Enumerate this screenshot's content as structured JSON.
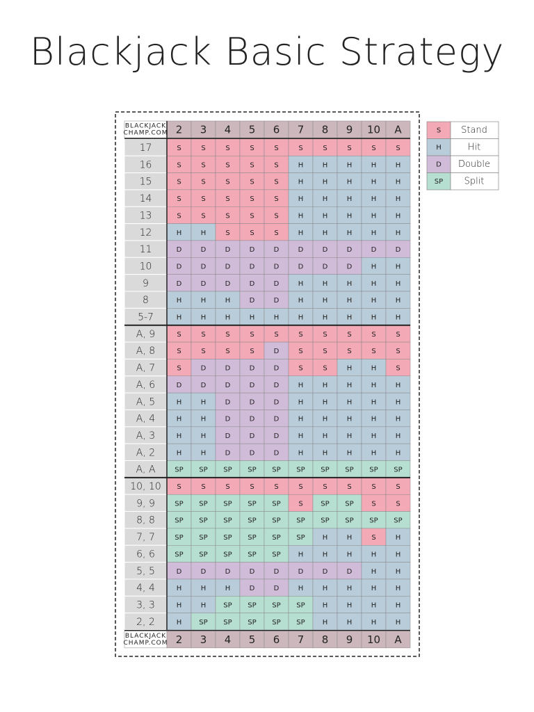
{
  "title": "Blackjack Basic Strategy",
  "brand": [
    "BLACKJACK",
    "CHAMP.COM"
  ],
  "columns": [
    "2",
    "3",
    "4",
    "5",
    "6",
    "7",
    "8",
    "9",
    "10",
    "A"
  ],
  "legend": [
    {
      "code": "S",
      "label": "Stand",
      "color": "#f4a9b7"
    },
    {
      "code": "H",
      "label": "Hit",
      "color": "#b9ccda"
    },
    {
      "code": "D",
      "label": "Double",
      "color": "#d0bcd9"
    },
    {
      "code": "SP",
      "label": "Split",
      "color": "#b6ded1"
    }
  ],
  "rows": [
    {
      "label": "17",
      "cells": [
        "S",
        "S",
        "S",
        "S",
        "S",
        "S",
        "S",
        "S",
        "S",
        "S"
      ]
    },
    {
      "label": "16",
      "cells": [
        "S",
        "S",
        "S",
        "S",
        "S",
        "H",
        "H",
        "H",
        "H",
        "H"
      ]
    },
    {
      "label": "15",
      "cells": [
        "S",
        "S",
        "S",
        "S",
        "S",
        "H",
        "H",
        "H",
        "H",
        "H"
      ]
    },
    {
      "label": "14",
      "cells": [
        "S",
        "S",
        "S",
        "S",
        "S",
        "H",
        "H",
        "H",
        "H",
        "H"
      ]
    },
    {
      "label": "13",
      "cells": [
        "S",
        "S",
        "S",
        "S",
        "S",
        "H",
        "H",
        "H",
        "H",
        "H"
      ]
    },
    {
      "label": "12",
      "cells": [
        "H",
        "H",
        "S",
        "S",
        "S",
        "H",
        "H",
        "H",
        "H",
        "H"
      ]
    },
    {
      "label": "11",
      "cells": [
        "D",
        "D",
        "D",
        "D",
        "D",
        "D",
        "D",
        "D",
        "D",
        "D"
      ]
    },
    {
      "label": "10",
      "cells": [
        "D",
        "D",
        "D",
        "D",
        "D",
        "D",
        "D",
        "D",
        "H",
        "H"
      ]
    },
    {
      "label": "9",
      "cells": [
        "D",
        "D",
        "D",
        "D",
        "D",
        "H",
        "H",
        "H",
        "H",
        "H"
      ]
    },
    {
      "label": "8",
      "cells": [
        "H",
        "H",
        "H",
        "D",
        "D",
        "H",
        "H",
        "H",
        "H",
        "H"
      ]
    },
    {
      "label": "5-7",
      "cells": [
        "H",
        "H",
        "H",
        "H",
        "H",
        "H",
        "H",
        "H",
        "H",
        "H"
      ]
    },
    {
      "label": "A, 9",
      "cells": [
        "S",
        "S",
        "S",
        "S",
        "S",
        "S",
        "S",
        "S",
        "S",
        "S"
      ]
    },
    {
      "label": "A, 8",
      "cells": [
        "S",
        "S",
        "S",
        "S",
        "D",
        "S",
        "S",
        "S",
        "S",
        "S"
      ]
    },
    {
      "label": "A, 7",
      "cells": [
        "S",
        "D",
        "D",
        "D",
        "D",
        "S",
        "S",
        "H",
        "H",
        "S"
      ]
    },
    {
      "label": "A, 6",
      "cells": [
        "D",
        "D",
        "D",
        "D",
        "D",
        "H",
        "H",
        "H",
        "H",
        "H"
      ]
    },
    {
      "label": "A, 5",
      "cells": [
        "H",
        "H",
        "D",
        "D",
        "D",
        "H",
        "H",
        "H",
        "H",
        "H"
      ]
    },
    {
      "label": "A, 4",
      "cells": [
        "H",
        "H",
        "D",
        "D",
        "D",
        "H",
        "H",
        "H",
        "H",
        "H"
      ]
    },
    {
      "label": "A, 3",
      "cells": [
        "H",
        "H",
        "D",
        "D",
        "D",
        "H",
        "H",
        "H",
        "H",
        "H"
      ]
    },
    {
      "label": "A, 2",
      "cells": [
        "H",
        "H",
        "D",
        "D",
        "D",
        "H",
        "H",
        "H",
        "H",
        "H"
      ]
    },
    {
      "label": "A, A",
      "cells": [
        "SP",
        "SP",
        "SP",
        "SP",
        "SP",
        "SP",
        "SP",
        "SP",
        "SP",
        "SP"
      ]
    },
    {
      "label": "10, 10",
      "cells": [
        "S",
        "S",
        "S",
        "S",
        "S",
        "S",
        "S",
        "S",
        "S",
        "S"
      ]
    },
    {
      "label": "9, 9",
      "cells": [
        "SP",
        "SP",
        "SP",
        "SP",
        "SP",
        "S",
        "SP",
        "SP",
        "S",
        "S"
      ]
    },
    {
      "label": "8, 8",
      "cells": [
        "SP",
        "SP",
        "SP",
        "SP",
        "SP",
        "SP",
        "SP",
        "SP",
        "SP",
        "SP"
      ]
    },
    {
      "label": "7, 7",
      "cells": [
        "SP",
        "SP",
        "SP",
        "SP",
        "SP",
        "SP",
        "H",
        "H",
        "S",
        "H"
      ]
    },
    {
      "label": "6, 6",
      "cells": [
        "SP",
        "SP",
        "SP",
        "SP",
        "SP",
        "H",
        "H",
        "H",
        "H",
        "H"
      ]
    },
    {
      "label": "5, 5",
      "cells": [
        "D",
        "D",
        "D",
        "D",
        "D",
        "D",
        "D",
        "D",
        "H",
        "H"
      ]
    },
    {
      "label": "4, 4",
      "cells": [
        "H",
        "H",
        "H",
        "D",
        "D",
        "H",
        "H",
        "H",
        "H",
        "H"
      ]
    },
    {
      "label": "3, 3",
      "cells": [
        "H",
        "H",
        "SP",
        "SP",
        "SP",
        "SP",
        "H",
        "H",
        "H",
        "H"
      ]
    },
    {
      "label": "2, 2",
      "cells": [
        "H",
        "SP",
        "SP",
        "SP",
        "SP",
        "SP",
        "H",
        "H",
        "H",
        "H"
      ]
    }
  ]
}
